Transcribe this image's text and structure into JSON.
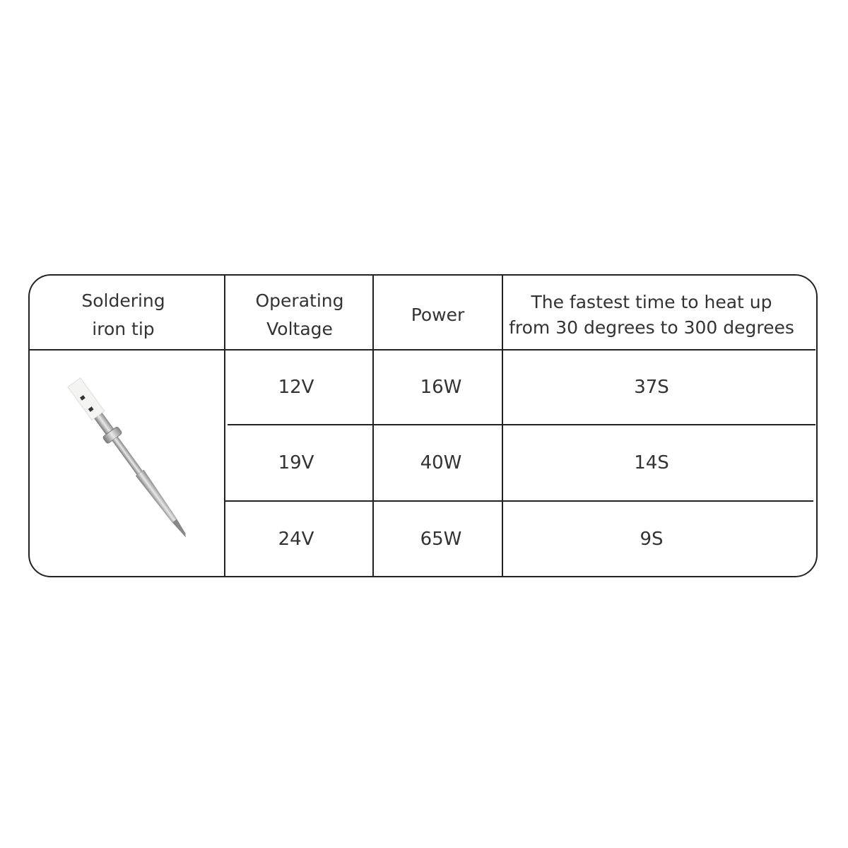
{
  "table": {
    "headers": [
      "Soldering iron tip",
      "Operating Voltage",
      "Power",
      "The fastest time to heat up from 30 degrees to 300 degrees"
    ],
    "header_lines": {
      "tip": [
        "Soldering",
        "iron tip"
      ],
      "voltage": [
        "Operating",
        "Voltage"
      ],
      "power": [
        "Power"
      ],
      "time": [
        "The fastest time to heat up",
        "from 30 degrees to 300 degrees"
      ]
    },
    "rows": [
      {
        "voltage": "12V",
        "power": "16W",
        "time": "37S"
      },
      {
        "voltage": "19V",
        "power": "40W",
        "time": "14S"
      },
      {
        "voltage": "24V",
        "power": "65W",
        "time": "9S"
      }
    ],
    "image_icon": "soldering-iron-tip-image"
  }
}
